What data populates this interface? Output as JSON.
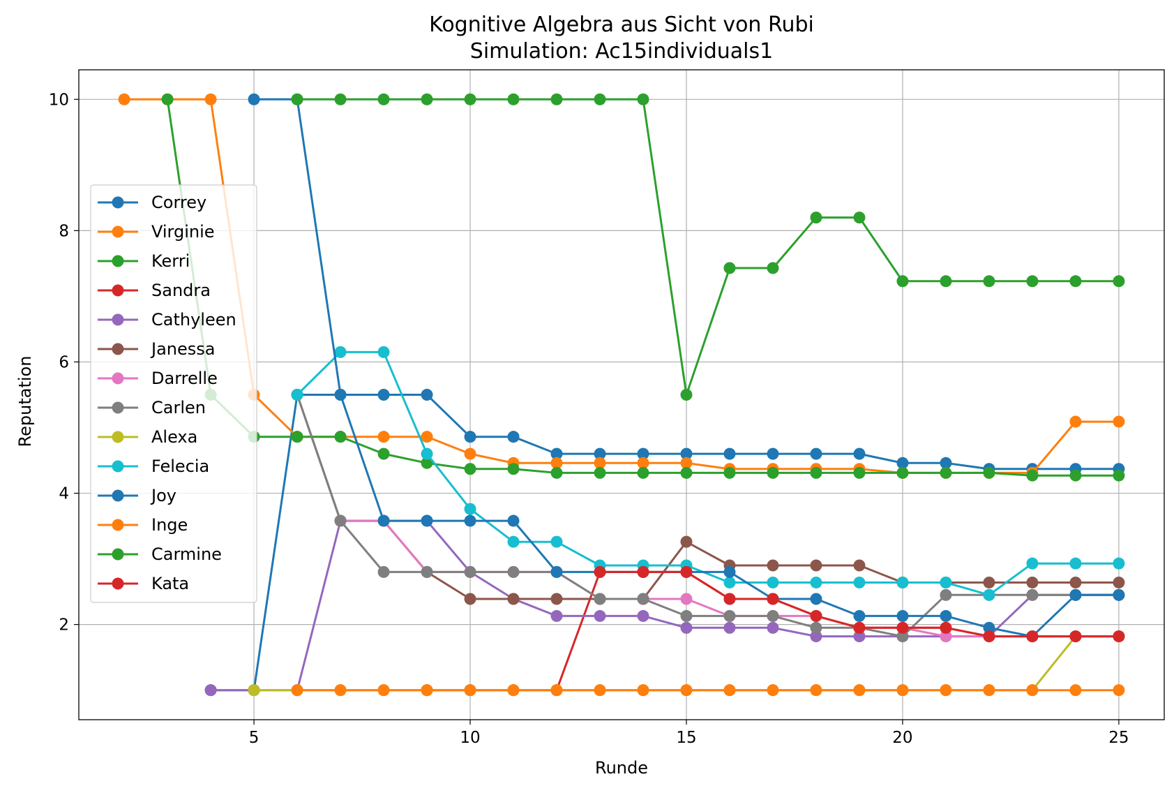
{
  "chart_data": {
    "type": "line",
    "title": "Kognitive Algebra aus Sicht von Rubi",
    "subtitle": "Simulation: Ac15individuals1",
    "xlabel": "Runde",
    "ylabel": "Reputation",
    "xlim": [
      0.95,
      26.05
    ],
    "ylim": [
      0.55,
      10.45
    ],
    "xticks": [
      5,
      10,
      15,
      20,
      25
    ],
    "yticks": [
      2,
      4,
      6,
      8,
      10
    ],
    "grid": true,
    "legend_position": "center-left",
    "series": [
      {
        "name": "Correy",
        "color": "#1f77b4",
        "x": [
          4,
          5,
          6,
          7,
          8,
          9,
          10,
          11,
          12,
          13,
          14,
          15,
          16,
          17,
          18,
          19,
          20,
          21,
          22,
          23,
          24,
          25
        ],
        "y": [
          1.0,
          1.0,
          5.5,
          5.5,
          5.5,
          5.5,
          4.86,
          4.86,
          4.6,
          4.6,
          4.6,
          4.6,
          4.6,
          4.6,
          4.6,
          4.6,
          4.46,
          4.46,
          4.37,
          4.37,
          4.37,
          4.37
        ]
      },
      {
        "name": "Virginie",
        "color": "#ff7f0e",
        "x": [
          2,
          3,
          4,
          5,
          6,
          7,
          8,
          9,
          10,
          11,
          12,
          13,
          14,
          15,
          16,
          17,
          18,
          19,
          20,
          21,
          22,
          23,
          24,
          25
        ],
        "y": [
          10.0,
          10.0,
          10.0,
          5.5,
          4.86,
          4.86,
          4.86,
          4.86,
          4.6,
          4.46,
          4.46,
          4.46,
          4.46,
          4.46,
          4.37,
          4.37,
          4.37,
          4.37,
          4.31,
          4.31,
          4.31,
          4.31,
          5.09,
          5.09
        ]
      },
      {
        "name": "Kerri",
        "color": "#2ca02c",
        "x": [
          3,
          4,
          5,
          6,
          7,
          8,
          9,
          10,
          11,
          12,
          13,
          14,
          15,
          16,
          17,
          18,
          19,
          20,
          21,
          22,
          23,
          24,
          25
        ],
        "y": [
          10.0,
          5.5,
          4.86,
          4.86,
          4.86,
          4.6,
          4.46,
          4.37,
          4.37,
          4.31,
          4.31,
          4.31,
          4.31,
          4.31,
          4.31,
          4.31,
          4.31,
          4.31,
          4.31,
          4.31,
          4.27,
          4.27,
          4.27
        ]
      },
      {
        "name": "Sandra",
        "color": "#d62728",
        "x": [
          9,
          10,
          11,
          12,
          13,
          14,
          15,
          16,
          17,
          18,
          19,
          20,
          21,
          22,
          23,
          24,
          25
        ],
        "y": [
          1.0,
          1.0,
          1.0,
          1.0,
          2.8,
          2.8,
          2.8,
          2.39,
          2.39,
          2.13,
          1.95,
          1.95,
          1.95,
          1.82,
          1.82,
          1.82,
          1.82
        ]
      },
      {
        "name": "Cathyleen",
        "color": "#9467bd",
        "x": [
          4,
          5,
          6,
          7,
          8,
          9,
          10,
          11,
          12,
          13,
          14,
          15,
          16,
          17,
          18,
          19,
          20,
          21,
          22,
          23,
          24,
          25
        ],
        "y": [
          1.0,
          1.0,
          1.0,
          3.58,
          3.58,
          3.58,
          2.8,
          2.39,
          2.13,
          2.13,
          2.13,
          1.95,
          1.95,
          1.95,
          1.82,
          1.82,
          1.82,
          1.82,
          1.82,
          2.45,
          2.45,
          2.45
        ]
      },
      {
        "name": "Janessa",
        "color": "#8c564b",
        "x": [
          6,
          7,
          8,
          9,
          10,
          11,
          12,
          13,
          14,
          15,
          16,
          17,
          18,
          19,
          20,
          21,
          22,
          23,
          24,
          25
        ],
        "y": [
          5.5,
          3.58,
          3.58,
          2.8,
          2.39,
          2.39,
          2.39,
          2.39,
          2.39,
          3.26,
          2.9,
          2.9,
          2.9,
          2.9,
          2.64,
          2.64,
          2.64,
          2.64,
          2.64,
          2.64
        ]
      },
      {
        "name": "Darrelle",
        "color": "#e377c2",
        "x": [
          7,
          8,
          9,
          10,
          11,
          12,
          13,
          14,
          15,
          16,
          17,
          18,
          19,
          20,
          21,
          22,
          23,
          24,
          25
        ],
        "y": [
          3.58,
          3.58,
          2.8,
          2.8,
          2.8,
          2.8,
          2.39,
          2.39,
          2.39,
          2.13,
          2.13,
          2.13,
          1.95,
          1.95,
          1.82,
          1.82,
          1.82,
          1.82,
          1.82
        ]
      },
      {
        "name": "Carlen",
        "color": "#7f7f7f",
        "x": [
          6,
          7,
          8,
          9,
          10,
          11,
          12,
          13,
          14,
          15,
          16,
          17,
          18,
          19,
          20,
          21,
          22,
          23,
          24,
          25
        ],
        "y": [
          5.5,
          3.58,
          2.8,
          2.8,
          2.8,
          2.8,
          2.8,
          2.39,
          2.39,
          2.13,
          2.13,
          2.13,
          1.95,
          1.95,
          1.82,
          2.45,
          2.45,
          2.45,
          2.45,
          2.45
        ]
      },
      {
        "name": "Alexa",
        "color": "#bcbd22",
        "x": [
          5,
          6,
          7,
          8,
          9,
          10,
          11,
          12,
          13,
          14,
          15,
          16,
          17,
          18,
          19,
          20,
          21,
          22,
          23,
          24,
          25
        ],
        "y": [
          1.0,
          1.0,
          1.0,
          1.0,
          1.0,
          1.0,
          1.0,
          1.0,
          1.0,
          1.0,
          1.0,
          1.0,
          1.0,
          1.0,
          1.0,
          1.0,
          1.0,
          1.0,
          1.0,
          1.82,
          1.82
        ]
      },
      {
        "name": "Felecia",
        "color": "#17becf",
        "x": [
          6,
          7,
          8,
          9,
          10,
          11,
          12,
          13,
          14,
          15,
          16,
          17,
          18,
          19,
          20,
          21,
          22,
          23,
          24,
          25
        ],
        "y": [
          5.5,
          6.15,
          6.15,
          4.6,
          3.76,
          3.26,
          3.26,
          2.9,
          2.9,
          2.9,
          2.64,
          2.64,
          2.64,
          2.64,
          2.64,
          2.64,
          2.45,
          2.93,
          2.93,
          2.93
        ]
      },
      {
        "name": "Joy",
        "color": "#1f77b4",
        "x": [
          5,
          6,
          7,
          8,
          9,
          10,
          11,
          12,
          13,
          14,
          15,
          16,
          17,
          18,
          19,
          20,
          21,
          22,
          23,
          24,
          25
        ],
        "y": [
          10.0,
          10.0,
          5.5,
          3.58,
          3.58,
          3.58,
          3.58,
          2.8,
          2.8,
          2.8,
          2.8,
          2.8,
          2.39,
          2.39,
          2.13,
          2.13,
          2.13,
          1.95,
          1.82,
          2.45,
          2.45
        ]
      },
      {
        "name": "Inge",
        "color": "#ff7f0e",
        "x": [
          6,
          7,
          8,
          9,
          10,
          11,
          12,
          13,
          14,
          15,
          16,
          17,
          18,
          19,
          20,
          21,
          22,
          23,
          24,
          25
        ],
        "y": [
          1.0,
          1.0,
          1.0,
          1.0,
          1.0,
          1.0,
          1.0,
          1.0,
          1.0,
          1.0,
          1.0,
          1.0,
          1.0,
          1.0,
          1.0,
          1.0,
          1.0,
          1.0,
          1.0,
          1.0
        ]
      },
      {
        "name": "Carmine",
        "color": "#2ca02c",
        "x": [
          6,
          7,
          8,
          9,
          10,
          11,
          12,
          13,
          14,
          15,
          16,
          17,
          18,
          19,
          20,
          21,
          22,
          23,
          24,
          25
        ],
        "y": [
          10.0,
          10.0,
          10.0,
          10.0,
          10.0,
          10.0,
          10.0,
          10.0,
          10.0,
          5.5,
          7.43,
          7.43,
          8.2,
          8.2,
          7.23,
          7.23,
          7.23,
          7.23,
          7.23,
          7.23
        ]
      },
      {
        "name": "Kata",
        "color": "#d62728",
        "x": [
          13,
          14,
          15,
          16,
          17,
          18,
          19,
          20,
          21,
          22,
          23,
          24,
          25
        ],
        "y": [
          2.8,
          2.8,
          2.8,
          2.39,
          2.39,
          2.13,
          1.95,
          1.95,
          1.95,
          1.82,
          1.82,
          1.82,
          1.82
        ]
      }
    ]
  }
}
